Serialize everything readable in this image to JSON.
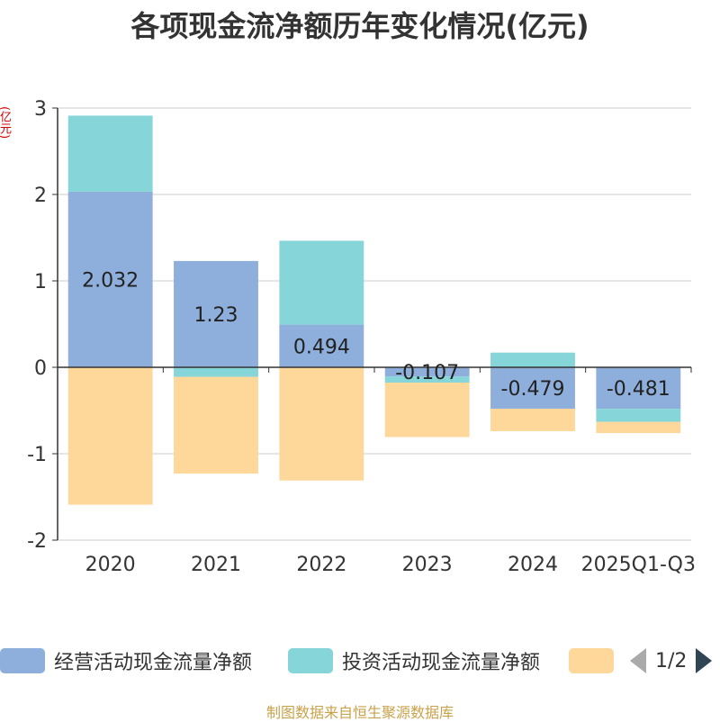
{
  "chart_data": {
    "type": "bar",
    "stacked": true,
    "title": "各项现金流净额历年变化情况(亿元)",
    "ylabel": "(亿元)",
    "categories": [
      "2020",
      "2021",
      "2022",
      "2023",
      "2024",
      "2025Q1-Q3"
    ],
    "ylim": [
      -2,
      3
    ],
    "yticks": [
      -2,
      -1,
      0,
      1,
      2,
      3
    ],
    "grid": true,
    "series": [
      {
        "name": "经营活动现金流量净额",
        "color": "#8eaedb",
        "values": [
          2.032,
          1.23,
          0.494,
          -0.107,
          -0.479,
          -0.481
        ],
        "labels": [
          "2.032",
          "1.23",
          "0.494",
          "-0.107",
          "-0.479",
          "-0.481"
        ]
      },
      {
        "name": "投资活动现金流量净额",
        "color": "#86d5d8",
        "values": [
          0.88,
          -0.11,
          0.97,
          -0.07,
          0.17,
          -0.15
        ]
      },
      {
        "name": "",
        "color": "#fdd89a",
        "values": [
          -1.59,
          -1.12,
          -1.31,
          -0.63,
          -0.26,
          -0.13
        ]
      }
    ]
  },
  "legend": {
    "items": [
      {
        "label": "经营活动现金流量净额",
        "color": "#8eaedb"
      },
      {
        "label": "投资活动现金流量净额",
        "color": "#86d5d8"
      },
      {
        "label": "",
        "color": "#fdd89a"
      }
    ],
    "page": "1/2"
  },
  "source": "制图数据来自恒生聚源数据库"
}
